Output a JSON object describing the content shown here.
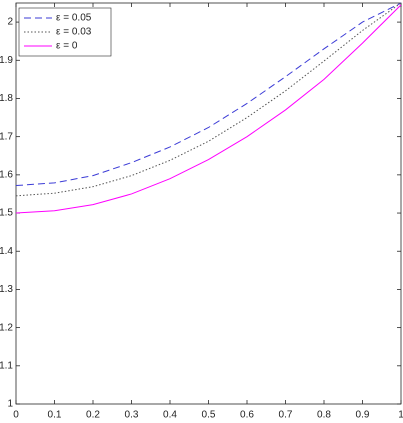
{
  "chart_data": {
    "type": "line",
    "x": [
      0,
      0.1,
      0.2,
      0.3,
      0.4,
      0.5,
      0.6,
      0.7,
      0.8,
      0.9,
      1
    ],
    "series": [
      {
        "name": "ε = 0.05",
        "color": "#3b3bd6",
        "linestyle": "dashed",
        "values": [
          1.572,
          1.579,
          1.598,
          1.632,
          1.673,
          1.724,
          1.787,
          1.857,
          1.93,
          2.0,
          2.05
        ]
      },
      {
        "name": "ε = 0.03",
        "color": "#555555",
        "linestyle": "dotted",
        "values": [
          1.545,
          1.552,
          1.569,
          1.598,
          1.638,
          1.688,
          1.75,
          1.82,
          1.898,
          1.978,
          2.05
        ]
      },
      {
        "name": "ε = 0",
        "color": "#ff00ff",
        "linestyle": "solid",
        "values": [
          1.5,
          1.506,
          1.522,
          1.55,
          1.59,
          1.64,
          1.7,
          1.77,
          1.85,
          1.945,
          2.045
        ]
      }
    ],
    "xlim": [
      0,
      1
    ],
    "xticks": [
      0,
      0.1,
      0.2,
      0.3,
      0.4,
      0.5,
      0.6,
      0.7,
      0.8,
      0.9,
      1
    ],
    "ylim": [
      1,
      2.05
    ],
    "yticks": [
      1,
      1.1,
      1.2,
      1.3,
      1.4,
      1.5,
      1.6,
      1.7,
      1.8,
      1.9,
      2
    ],
    "grid": false,
    "legend": "top-left"
  }
}
